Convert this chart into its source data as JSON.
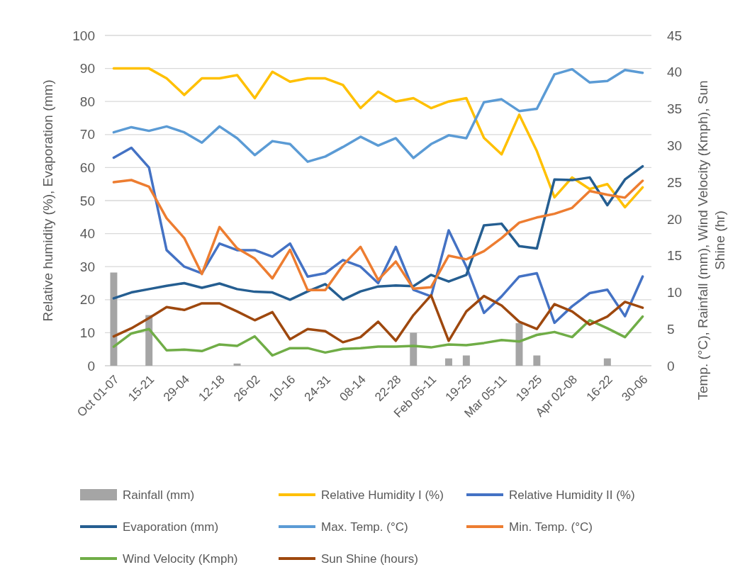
{
  "chart_data": {
    "type": "line",
    "ylabel": "Relative humidity (%), Evaporation (mm)",
    "y2label": "Temp. (°C), Rainfall (mm), Wind Velocity (Kmph), Sun Shine (hr)",
    "categories": [
      "Oct 01-07",
      null,
      "15-21",
      null,
      "29-04",
      null,
      "12-18",
      null,
      "26-02",
      null,
      "10-16",
      null,
      "24-31",
      null,
      "08-14",
      null,
      "22-28",
      null,
      "Feb 05-11",
      null,
      "19-25",
      null,
      "Mar 05-11",
      null,
      "19-25",
      null,
      "Apr 02-08",
      null,
      "16-22",
      null,
      "30-06"
    ],
    "ylim": [
      0,
      100
    ],
    "yticks": [
      0,
      10,
      20,
      30,
      40,
      50,
      60,
      70,
      80,
      90,
      100
    ],
    "y2lim": [
      0,
      45
    ],
    "y2ticks": [
      0,
      5,
      10,
      15,
      20,
      25,
      30,
      35,
      40,
      45
    ],
    "grid": "y",
    "legend": "bottom",
    "series": [
      {
        "name": "Rainfall (mm)",
        "type": "bar",
        "axis": "y2",
        "color": "#a5a5a5",
        "values": [
          12.7,
          null,
          6.9,
          null,
          null,
          null,
          null,
          0.3,
          null,
          null,
          null,
          null,
          null,
          null,
          null,
          null,
          null,
          4.5,
          null,
          1,
          1.4,
          null,
          null,
          5.8,
          1.4,
          null,
          null,
          null,
          1,
          null,
          null
        ]
      },
      {
        "name": "Relative Humidity I (%)",
        "color": "#ffc000",
        "values": [
          90,
          90,
          90,
          87,
          82,
          87,
          87,
          88,
          81,
          89,
          86,
          87,
          87,
          85,
          78,
          83,
          80,
          81,
          78,
          80,
          81,
          69,
          64,
          76,
          65,
          51,
          57,
          53.5,
          55,
          48,
          54
        ]
      },
      {
        "name": "Relative Humidity II (%)",
        "color": "#4472c4",
        "values": [
          63,
          66,
          60,
          35,
          30,
          28,
          37,
          35,
          35,
          33,
          37,
          27,
          28,
          32,
          30,
          25,
          36,
          23,
          21,
          41,
          30,
          16,
          21,
          27,
          28,
          13,
          18,
          22,
          23,
          15,
          27
        ]
      },
      {
        "name": "Evaporation (mm)",
        "color": "#255e91",
        "values": [
          20.4,
          22.2,
          23.2,
          24.2,
          25,
          23.6,
          24.9,
          23.2,
          22.4,
          22.2,
          20,
          22.5,
          24.7,
          20,
          22.5,
          24,
          24.3,
          24.1,
          27.5,
          25.5,
          27.5,
          42.5,
          43,
          36.2,
          35.5,
          56.4,
          56.2,
          57,
          48.6,
          56.4,
          60.4
        ]
      },
      {
        "name": "Max. Temp. (°C)",
        "axis": "y2",
        "color": "#5b9bd5",
        "values": [
          31.8,
          32.5,
          32,
          32.6,
          31.8,
          30.4,
          32.6,
          31,
          28.7,
          30.6,
          30.2,
          27.8,
          28.5,
          29.8,
          31.2,
          30,
          31,
          28.3,
          30.2,
          31.4,
          31,
          35.9,
          36.3,
          34.7,
          35,
          39.7,
          40.4,
          38.6,
          38.8,
          40.3,
          39.9
        ]
      },
      {
        "name": "Min. Temp. (°C)",
        "axis": "y2",
        "color": "#ed7d31",
        "values": [
          25,
          25.3,
          24.4,
          20.1,
          17.4,
          12.5,
          18.9,
          16,
          14.6,
          11.9,
          15.8,
          10.3,
          10.3,
          13.7,
          16.2,
          11.7,
          14.2,
          10.5,
          10.7,
          15,
          14.5,
          15.6,
          17.4,
          19.5,
          20.2,
          20.7,
          21.5,
          23.8,
          23.3,
          22.9,
          25.2
        ]
      },
      {
        "name": "Wind Velocity (Kmph)",
        "axis": "y2",
        "color": "#70ad47",
        "values": [
          2.6,
          4.4,
          5,
          2.1,
          2.2,
          2,
          2.9,
          2.7,
          4,
          1.4,
          2.4,
          2.4,
          1.8,
          2.3,
          2.4,
          2.6,
          2.6,
          2.7,
          2.5,
          2.9,
          2.8,
          3.1,
          3.5,
          3.3,
          4.2,
          4.6,
          3.9,
          6.2,
          5.1,
          3.9,
          6.7
        ]
      },
      {
        "name": "Sun Shine (hours)",
        "axis": "y2",
        "color": "#9e480e",
        "values": [
          4,
          5.1,
          6.5,
          8,
          7.6,
          8.5,
          8.5,
          7.4,
          6.2,
          7.3,
          3.6,
          5,
          4.7,
          3.2,
          3.9,
          6,
          3.4,
          6.9,
          9.6,
          3.4,
          7.4,
          9.5,
          8.2,
          6,
          5,
          8.4,
          7.4,
          5.6,
          6.7,
          8.7,
          7.9
        ]
      }
    ]
  }
}
